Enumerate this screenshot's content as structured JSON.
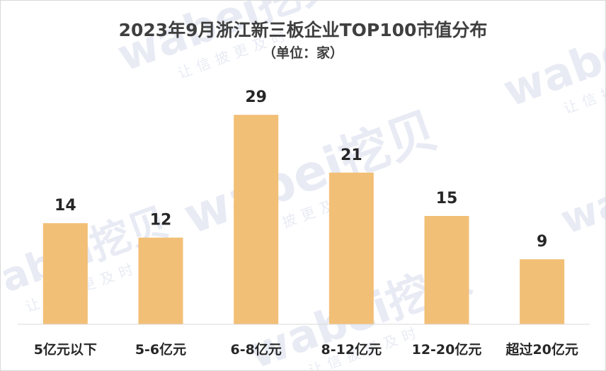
{
  "chart_data": {
    "type": "bar",
    "title": "2023年9月浙江新三板企业TOP100市值分布",
    "subtitle": "（单位：家）",
    "categories": [
      "5亿元以下",
      "5-6亿元",
      "6-8亿元",
      "8-12亿元",
      "12-20亿元",
      "超过20亿元"
    ],
    "values": [
      14,
      12,
      29,
      21,
      15,
      9
    ],
    "xlabel": "",
    "ylabel": "",
    "ylim": [
      0,
      35
    ],
    "grid": false,
    "legend": "none",
    "bar_color": "#f2bf76"
  },
  "watermark": {
    "brand": "wabei挖贝",
    "tagline": "让信披更及时"
  }
}
